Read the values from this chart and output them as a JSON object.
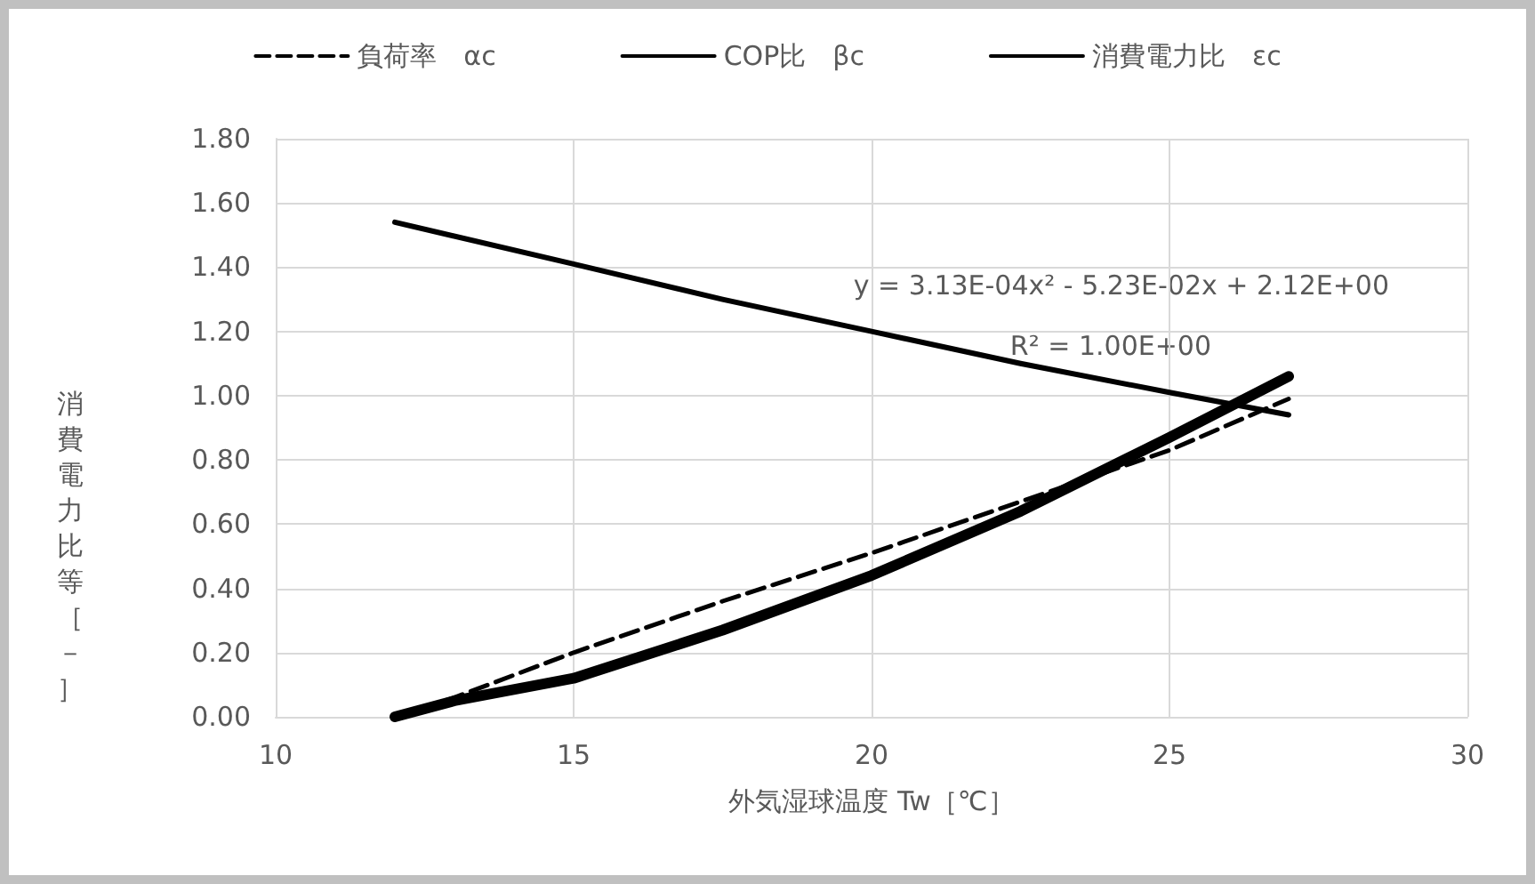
{
  "chart_data": {
    "type": "line",
    "xlabel": "外気湿球温度 Tw［℃］",
    "ylabel": "消費電力比等［－］",
    "x": [
      12,
      13,
      15,
      17.5,
      20,
      22.5,
      25,
      27
    ],
    "series": [
      {
        "name": "負荷率　αc",
        "color": "#000000",
        "line_style": "dashed",
        "values": [
          0,
          0.06,
          0.2,
          0.36,
          0.51,
          0.67,
          0.83,
          0.99
        ]
      },
      {
        "name": "COP比　βc",
        "color": "#000000",
        "line_style": "solid",
        "x": [
          12,
          15,
          17.5,
          20,
          22.5,
          25,
          27
        ],
        "values": [
          1.54,
          1.41,
          1.3,
          1.2,
          1.1,
          1.01,
          0.94
        ]
      },
      {
        "name": "消費電力比　εc",
        "color": "#000000",
        "line_style": "solid",
        "values": [
          0,
          0.05,
          0.12,
          0.27,
          0.44,
          0.64,
          0.87,
          1.06
        ]
      }
    ],
    "annotations": [
      "y = 3.13E-04x² - 5.23E-02x + 2.12E+00",
      "R² = 1.00E+00"
    ],
    "xlim": [
      10,
      30
    ],
    "xticks": [
      10,
      15,
      20,
      25,
      30
    ],
    "ylim": [
      0,
      1.8
    ],
    "yticks": [
      {
        "value": 0,
        "label": "0.00"
      },
      {
        "value": 0.2,
        "label": "0.20"
      },
      {
        "value": 0.4,
        "label": "0.40"
      },
      {
        "value": 0.6,
        "label": "0.60"
      },
      {
        "value": 0.8,
        "label": "0.80"
      },
      {
        "value": 1,
        "label": "1.00"
      },
      {
        "value": 1.2,
        "label": "1.20"
      },
      {
        "value": 1.4,
        "label": "1.40"
      },
      {
        "value": 1.6,
        "label": "1.60"
      },
      {
        "value": 1.8,
        "label": "1.80"
      }
    ],
    "grid": true,
    "legend": "top",
    "marker": "none"
  }
}
